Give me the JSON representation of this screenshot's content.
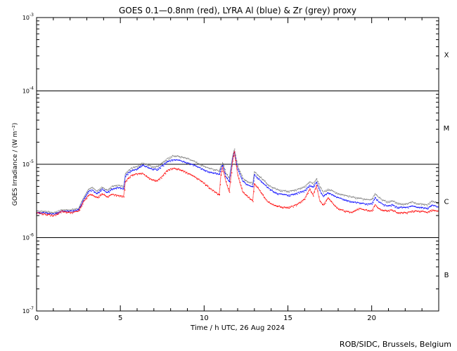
{
  "chart_data": {
    "type": "line",
    "title": "GOES 0.1—0.8nm (red), LYRA Al (blue) & Zr (grey) proxy",
    "xlabel": "Time / h UTC, 26 Aug 2024",
    "ylabel": "GOES Irradiance / (W m⁻²)",
    "xlim": [
      0,
      24
    ],
    "ylim_log10": [
      -7,
      -3
    ],
    "x_ticks": [
      {
        "value": 0,
        "label": "0"
      },
      {
        "value": 5,
        "label": "5"
      },
      {
        "value": 10,
        "label": "10"
      },
      {
        "value": 15,
        "label": "15"
      },
      {
        "value": 20,
        "label": "20"
      }
    ],
    "y_ticks": [
      {
        "exp": -3,
        "base": "10",
        "sup": "-3"
      },
      {
        "exp": -4,
        "base": "10",
        "sup": "-4"
      },
      {
        "exp": -5,
        "base": "10",
        "sup": "-5"
      },
      {
        "exp": -6,
        "base": "10",
        "sup": "-6"
      },
      {
        "exp": -7,
        "base": "10",
        "sup": "-7"
      }
    ],
    "class_lines_log10": [
      -4,
      -5,
      -6
    ],
    "flare_classes": [
      {
        "label": "X",
        "center_log10": -3.5
      },
      {
        "label": "M",
        "center_log10": -4.5
      },
      {
        "label": "C",
        "center_log10": -5.5
      },
      {
        "label": "B",
        "center_log10": -6.5
      }
    ],
    "series": [
      {
        "name": "LYRA Zr proxy",
        "color": "#808080",
        "x": [
          0,
          0.5,
          1,
          1.5,
          2,
          2.5,
          2.8,
          3.1,
          3.3,
          3.6,
          3.9,
          4.2,
          4.5,
          4.8,
          5.2,
          5.3,
          5.5,
          5.7,
          6.0,
          6.3,
          6.6,
          6.9,
          7.2,
          7.5,
          7.8,
          8.1,
          8.4,
          8.7,
          9.0,
          9.4,
          9.8,
          10.2,
          10.6,
          10.9,
          11.0,
          11.1,
          11.3,
          11.5,
          11.7,
          11.8,
          12.0,
          12.3,
          12.6,
          12.9,
          13.0,
          13.2,
          13.5,
          13.8,
          14.1,
          14.4,
          14.7,
          15.0,
          15.3,
          15.6,
          16.0,
          16.3,
          16.5,
          16.7,
          16.9,
          17.1,
          17.4,
          17.7,
          18.0,
          18.4,
          18.8,
          19.2,
          19.6,
          20.0,
          20.2,
          20.4,
          20.6,
          20.9,
          21.2,
          21.5,
          21.8,
          22.1,
          22.4,
          22.7,
          23.0,
          23.3,
          23.6,
          24.0
        ],
        "values": [
          2.3e-06,
          2.3e-06,
          2.2e-06,
          2.4e-06,
          2.4e-06,
          2.5e-06,
          3.5e-06,
          4.6e-06,
          4.8e-06,
          4.3e-06,
          4.9e-06,
          4.4e-06,
          5e-06,
          5.2e-06,
          5e-06,
          7.5e-06,
          8.3e-06,
          9e-06,
          9.3e-06,
          1.05e-05,
          1e-05,
          9.3e-06,
          9.3e-06,
          1.05e-05,
          1.2e-05,
          1.3e-05,
          1.3e-05,
          1.25e-05,
          1.2e-05,
          1.1e-05,
          9.8e-06,
          9e-06,
          8.5e-06,
          8.2e-06,
          9.5e-06,
          1.05e-05,
          7.5e-06,
          6.5e-06,
          1.3e-05,
          1.6e-05,
          9.5e-06,
          6.5e-06,
          5.8e-06,
          5.5e-06,
          7.9e-06,
          7.2e-06,
          6.2e-06,
          5.3e-06,
          4.8e-06,
          4.5e-06,
          4.4e-06,
          4.3e-06,
          4.4e-06,
          4.6e-06,
          5e-06,
          5.8e-06,
          5.5e-06,
          6.3e-06,
          5e-06,
          4.2e-06,
          4.6e-06,
          4.3e-06,
          4e-06,
          3.8e-06,
          3.6e-06,
          3.5e-06,
          3.3e-06,
          3.3e-06,
          4e-06,
          3.6e-06,
          3.3e-06,
          3.1e-06,
          3.2e-06,
          3e-06,
          2.9e-06,
          2.9e-06,
          3.1e-06,
          2.9e-06,
          2.9e-06,
          2.8e-06,
          3.2e-06,
          2.9e-06
        ]
      },
      {
        "name": "LYRA Al proxy",
        "color": "#0000ff",
        "x": [
          0,
          0.5,
          1,
          1.5,
          2,
          2.5,
          2.8,
          3.1,
          3.3,
          3.6,
          3.9,
          4.2,
          4.5,
          4.8,
          5.2,
          5.3,
          5.5,
          5.7,
          6.0,
          6.3,
          6.6,
          6.9,
          7.2,
          7.5,
          7.8,
          8.1,
          8.4,
          8.7,
          9.0,
          9.4,
          9.8,
          10.2,
          10.6,
          10.9,
          11.0,
          11.1,
          11.3,
          11.5,
          11.7,
          11.8,
          12.0,
          12.3,
          12.6,
          12.9,
          13.0,
          13.2,
          13.5,
          13.8,
          14.1,
          14.4,
          14.7,
          15.0,
          15.3,
          15.6,
          16.0,
          16.3,
          16.5,
          16.7,
          16.9,
          17.1,
          17.4,
          17.7,
          18.0,
          18.4,
          18.8,
          19.2,
          19.6,
          20.0,
          20.2,
          20.4,
          20.6,
          20.9,
          21.2,
          21.5,
          21.8,
          22.1,
          22.4,
          22.7,
          23.0,
          23.3,
          23.6,
          24.0
        ],
        "values": [
          2.2e-06,
          2.2e-06,
          2.1e-06,
          2.3e-06,
          2.3e-06,
          2.4e-06,
          3.3e-06,
          4.3e-06,
          4.5e-06,
          4e-06,
          4.6e-06,
          4.1e-06,
          4.6e-06,
          4.8e-06,
          4.7e-06,
          7e-06,
          7.8e-06,
          8.3e-06,
          8.6e-06,
          9.8e-06,
          9.2e-06,
          8.6e-06,
          8.6e-06,
          9.6e-06,
          1.1e-05,
          1.15e-05,
          1.15e-05,
          1.1e-05,
          1.05e-05,
          9.8e-06,
          8.8e-06,
          8e-06,
          7.6e-06,
          7.3e-06,
          8.8e-06,
          9.8e-06,
          6.8e-06,
          5.8e-06,
          1.2e-05,
          1.5e-05,
          8.6e-06,
          5.9e-06,
          5.2e-06,
          4.9e-06,
          7.2e-06,
          6.5e-06,
          5.6e-06,
          4.8e-06,
          4.3e-06,
          4e-06,
          3.9e-06,
          3.8e-06,
          3.9e-06,
          4.1e-06,
          4.4e-06,
          5.2e-06,
          4.9e-06,
          5.7e-06,
          4.4e-06,
          3.7e-06,
          4.1e-06,
          3.8e-06,
          3.5e-06,
          3.3e-06,
          3.1e-06,
          3e-06,
          2.9e-06,
          2.9e-06,
          3.5e-06,
          3.1e-06,
          2.9e-06,
          2.7e-06,
          2.8e-06,
          2.6e-06,
          2.6e-06,
          2.6e-06,
          2.7e-06,
          2.6e-06,
          2.6e-06,
          2.5e-06,
          2.8e-06,
          2.6e-06
        ]
      },
      {
        "name": "GOES 0.1-0.8nm",
        "color": "#ff0000",
        "x": [
          0,
          0.5,
          1,
          1.5,
          2,
          2.5,
          2.8,
          3.1,
          3.3,
          3.6,
          3.9,
          4.2,
          4.5,
          4.8,
          5.2,
          5.3,
          5.5,
          5.7,
          6.0,
          6.3,
          6.6,
          6.9,
          7.2,
          7.5,
          7.8,
          8.1,
          8.4,
          8.7,
          9.0,
          9.4,
          9.8,
          10.2,
          10.6,
          10.9,
          11.0,
          11.1,
          11.3,
          11.5,
          11.7,
          11.8,
          12.0,
          12.3,
          12.6,
          12.9,
          13.0,
          13.2,
          13.5,
          13.8,
          14.1,
          14.4,
          14.7,
          15.0,
          15.3,
          15.6,
          16.0,
          16.3,
          16.5,
          16.7,
          16.9,
          17.1,
          17.4,
          17.7,
          18.0,
          18.4,
          18.8,
          19.2,
          19.6,
          20.0,
          20.2,
          20.4,
          20.6,
          20.9,
          21.2,
          21.5,
          21.8,
          22.1,
          22.4,
          22.7,
          23.0,
          23.3,
          23.6,
          24.0
        ],
        "values": [
          2.2e-06,
          2.1e-06,
          2e-06,
          2.3e-06,
          2.2e-06,
          2.3e-06,
          3.1e-06,
          3.8e-06,
          3.9e-06,
          3.5e-06,
          4e-06,
          3.6e-06,
          3.9e-06,
          3.8e-06,
          3.7e-06,
          5.8e-06,
          6.6e-06,
          7.2e-06,
          7.4e-06,
          7.6e-06,
          6.7e-06,
          6.2e-06,
          6e-06,
          6.9e-06,
          8.3e-06,
          8.8e-06,
          8.7e-06,
          8.2e-06,
          7.6e-06,
          6.9e-06,
          6e-06,
          5e-06,
          4.3e-06,
          3.8e-06,
          7.2e-06,
          9e-06,
          5.8e-06,
          4.2e-06,
          1.1e-05,
          1.5e-05,
          7.2e-06,
          4.2e-06,
          3.6e-06,
          3.2e-06,
          5.5e-06,
          4.8e-06,
          3.8e-06,
          3.1e-06,
          2.8e-06,
          2.7e-06,
          2.6e-06,
          2.6e-06,
          2.7e-06,
          2.9e-06,
          3.4e-06,
          4.6e-06,
          3.8e-06,
          5.1e-06,
          3.2e-06,
          2.8e-06,
          3.5e-06,
          2.9e-06,
          2.5e-06,
          2.3e-06,
          2.2e-06,
          2.5e-06,
          2.4e-06,
          2.3e-06,
          2.8e-06,
          2.5e-06,
          2.4e-06,
          2.3e-06,
          2.4e-06,
          2.2e-06,
          2.2e-06,
          2.2e-06,
          2.3e-06,
          2.3e-06,
          2.3e-06,
          2.2e-06,
          2.4e-06,
          2.3e-06
        ]
      }
    ]
  },
  "footer": {
    "credit": "ROB/SIDC, Brussels, Belgium"
  }
}
